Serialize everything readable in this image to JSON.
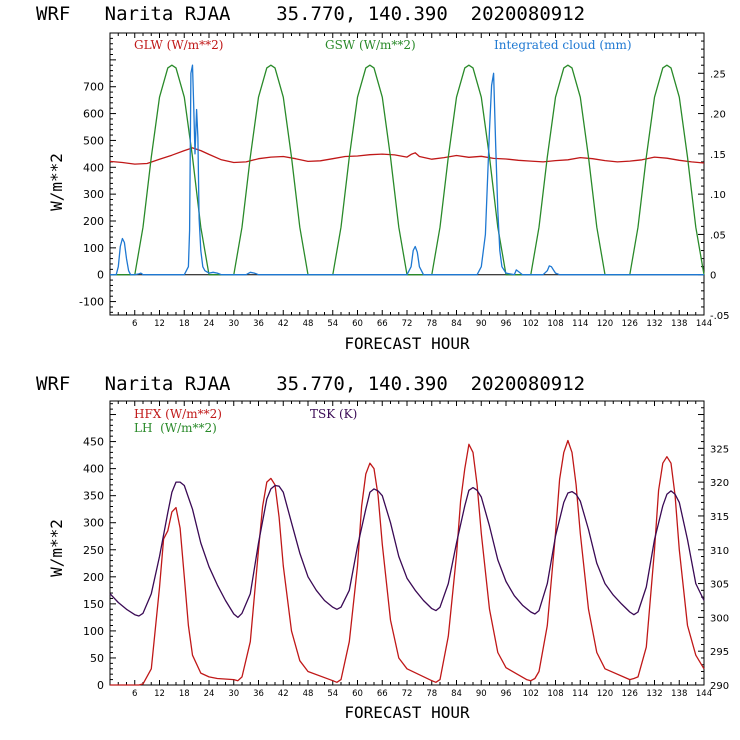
{
  "colors": {
    "red": "#c01818",
    "green": "#2a8a2a",
    "blue": "#1e78d2",
    "purple": "#3a0a55",
    "axis": "#000000"
  },
  "chart_data": [
    {
      "type": "line",
      "title": "WRF   Narita RJAA    35.770, 140.390  2020080912",
      "xlabel": "FORECAST HOUR",
      "ylabel": "W/m**2",
      "xlim": [
        0,
        144
      ],
      "ylim": [
        -150,
        900
      ],
      "y_ticks": [
        -100,
        0,
        100,
        200,
        300,
        400,
        500,
        600,
        700
      ],
      "x_ticks": [
        6,
        12,
        18,
        24,
        30,
        36,
        42,
        48,
        54,
        60,
        66,
        72,
        78,
        84,
        90,
        96,
        102,
        108,
        114,
        120,
        126,
        132,
        138,
        144
      ],
      "y2lim": [
        -0.05,
        0.3
      ],
      "y2_ticks": [
        -0.05,
        0,
        0.05,
        0.1,
        0.15,
        0.2,
        0.25
      ],
      "y2_tick_labels": [
        "-.05",
        "0",
        ".05",
        ".10",
        ".15",
        ".20",
        ".25"
      ],
      "series": [
        {
          "name": "GLW (W/m**2)",
          "color_key": "red",
          "x": [
            0,
            3,
            6,
            9,
            12,
            15,
            18,
            20,
            22,
            24,
            27,
            30,
            33,
            36,
            39,
            42,
            45,
            48,
            51,
            54,
            57,
            60,
            63,
            66,
            69,
            72,
            73,
            74,
            75,
            78,
            81,
            84,
            87,
            90,
            93,
            96,
            99,
            102,
            105,
            108,
            111,
            114,
            117,
            120,
            123,
            126,
            129,
            132,
            135,
            138,
            141,
            144
          ],
          "values": [
            422,
            418,
            412,
            414,
            430,
            445,
            462,
            472,
            462,
            448,
            428,
            418,
            420,
            432,
            438,
            440,
            432,
            422,
            424,
            432,
            440,
            442,
            447,
            449,
            446,
            438,
            448,
            454,
            440,
            430,
            436,
            444,
            437,
            441,
            433,
            431,
            426,
            423,
            420,
            425,
            428,
            436,
            432,
            425,
            420,
            423,
            428,
            438,
            434,
            426,
            420,
            416
          ]
        },
        {
          "name": "GSW (W/m**2)",
          "color_key": "green",
          "x": [
            0,
            6,
            8,
            10,
            12,
            14,
            15,
            16,
            18,
            20,
            22,
            24,
            30,
            32,
            34,
            36,
            38,
            39,
            40,
            42,
            44,
            46,
            48,
            54,
            56,
            58,
            60,
            62,
            63,
            64,
            66,
            68,
            70,
            72,
            78,
            80,
            82,
            84,
            86,
            87,
            88,
            90,
            92,
            94,
            96,
            102,
            104,
            106,
            108,
            110,
            111,
            112,
            114,
            116,
            118,
            120,
            126,
            128,
            130,
            132,
            134,
            135,
            136,
            138,
            140,
            142,
            144
          ],
          "values": [
            0,
            0,
            177,
            438,
            661,
            770,
            780,
            770,
            661,
            438,
            177,
            0,
            0,
            177,
            438,
            661,
            770,
            780,
            770,
            661,
            438,
            177,
            0,
            0,
            177,
            438,
            661,
            770,
            780,
            770,
            661,
            438,
            177,
            0,
            0,
            177,
            438,
            661,
            770,
            780,
            770,
            661,
            438,
            177,
            0,
            0,
            177,
            438,
            661,
            770,
            780,
            770,
            661,
            438,
            177,
            0,
            0,
            177,
            438,
            661,
            770,
            780,
            770,
            661,
            438,
            177,
            0
          ]
        },
        {
          "name": "Integrated cloud (mm)",
          "color_key": "blue",
          "axis": "right",
          "x": [
            0,
            1.5,
            2,
            2.5,
            3,
            3.5,
            4,
            4.5,
            5,
            6,
            7,
            7.5,
            8,
            9,
            18,
            19,
            19.3,
            19.6,
            20,
            20.3,
            20.6,
            21,
            21.3,
            21.6,
            22,
            22.5,
            23,
            24,
            25,
            26,
            27,
            33,
            34,
            35,
            36,
            72,
            73,
            73.5,
            74,
            74.5,
            75,
            76,
            89,
            90,
            91,
            92,
            92.5,
            93,
            93.5,
            94,
            94.5,
            95,
            96,
            98,
            98.5,
            99,
            100,
            105,
            106,
            106.5,
            107,
            107.5,
            108,
            109,
            144
          ],
          "values": [
            0,
            0,
            0.01,
            0.035,
            0.045,
            0.04,
            0.02,
            0.005,
            0,
            0,
            0.001,
            0.002,
            0,
            0,
            0,
            0.01,
            0.055,
            0.25,
            0.26,
            0.21,
            0.15,
            0.205,
            0.17,
            0.07,
            0.03,
            0.01,
            0.005,
            0.002,
            0.003,
            0.002,
            0,
            0,
            0.003,
            0.002,
            0,
            0,
            0.01,
            0.03,
            0.035,
            0.028,
            0.01,
            0,
            0,
            0.01,
            0.05,
            0.18,
            0.235,
            0.25,
            0.16,
            0.08,
            0.03,
            0.01,
            0.002,
            0,
            0.006,
            0.004,
            0,
            0,
            0.005,
            0.011,
            0.01,
            0.006,
            0.002,
            0,
            0
          ]
        }
      ]
    },
    {
      "type": "line",
      "title": "WRF   Narita RJAA    35.770, 140.390  2020080912",
      "xlabel": "FORECAST HOUR",
      "ylabel": "W/m**2",
      "xlim": [
        0,
        144
      ],
      "ylim": [
        0,
        525
      ],
      "y_ticks": [
        0,
        50,
        100,
        150,
        200,
        250,
        300,
        350,
        400,
        450
      ],
      "x_ticks": [
        6,
        12,
        18,
        24,
        30,
        36,
        42,
        48,
        54,
        60,
        66,
        72,
        78,
        84,
        90,
        96,
        102,
        108,
        114,
        120,
        126,
        132,
        138,
        144
      ],
      "y2lim": [
        290,
        332
      ],
      "y2_ticks": [
        290,
        295,
        300,
        305,
        310,
        315,
        320,
        325
      ],
      "y2_tick_labels": [
        "290",
        "295",
        "300",
        "305",
        "310",
        "315",
        "320",
        "325"
      ],
      "series": [
        {
          "name": "HFX (W/m**2)",
          "color_key": "red",
          "x": [
            0,
            1,
            3,
            5,
            6,
            7,
            8,
            10,
            12,
            13,
            14,
            15,
            16,
            17,
            18,
            19,
            20,
            22,
            24,
            26,
            30,
            31,
            32,
            34,
            36,
            37,
            38,
            39,
            40,
            41,
            42,
            44,
            46,
            48,
            54,
            55,
            56,
            58,
            60,
            61,
            62,
            63,
            64,
            65,
            66,
            68,
            70,
            72,
            78,
            79,
            80,
            82,
            84,
            85,
            86,
            87,
            88,
            89,
            90,
            92,
            94,
            96,
            101,
            102,
            103,
            104,
            106,
            108,
            109,
            110,
            111,
            112,
            113,
            114,
            116,
            118,
            120,
            126,
            127,
            128,
            130,
            132,
            133,
            134,
            135,
            136,
            137,
            138,
            140,
            142,
            144
          ],
          "values": [
            0,
            0,
            0,
            0,
            0,
            0,
            2,
            30,
            180,
            270,
            285,
            320,
            328,
            290,
            200,
            110,
            55,
            22,
            15,
            12,
            10,
            8,
            15,
            80,
            250,
            330,
            375,
            382,
            370,
            310,
            220,
            100,
            45,
            25,
            8,
            5,
            10,
            80,
            220,
            330,
            390,
            410,
            400,
            350,
            260,
            120,
            50,
            30,
            8,
            5,
            10,
            90,
            240,
            340,
            400,
            445,
            430,
            370,
            280,
            140,
            60,
            32,
            10,
            8,
            12,
            25,
            110,
            280,
            380,
            430,
            452,
            430,
            370,
            280,
            140,
            60,
            30,
            10,
            12,
            15,
            70,
            250,
            360,
            410,
            422,
            410,
            350,
            250,
            110,
            55,
            30
          ]
        },
        {
          "name": "LH  (W/m**2)",
          "color_key": "green",
          "x": [],
          "values": []
        },
        {
          "name": "TSK (K)",
          "color_key": "purple",
          "axis": "right",
          "x": [
            0,
            2,
            4,
            6,
            7,
            8,
            10,
            12,
            14,
            15,
            16,
            17,
            18,
            20,
            22,
            24,
            26,
            28,
            30,
            31,
            32,
            34,
            36,
            38,
            39,
            40,
            41,
            42,
            44,
            46,
            48,
            50,
            52,
            54,
            55,
            56,
            58,
            60,
            62,
            63,
            64,
            65,
            66,
            68,
            70,
            72,
            74,
            76,
            78,
            79,
            80,
            82,
            84,
            86,
            87,
            88,
            89,
            90,
            92,
            94,
            96,
            98,
            100,
            102,
            103,
            104,
            106,
            108,
            110,
            111,
            112,
            113,
            114,
            116,
            118,
            120,
            122,
            124,
            126,
            127,
            128,
            130,
            132,
            134,
            135,
            136,
            137,
            138,
            140,
            142,
            144
          ],
          "values": [
            303.5,
            302.2,
            301.2,
            300.4,
            300.2,
            300.6,
            303.5,
            309,
            315.5,
            318.5,
            320,
            320,
            319.5,
            316,
            311,
            307.5,
            304.8,
            302.5,
            300.5,
            300,
            300.6,
            303.5,
            311,
            317.5,
            319,
            319.5,
            319.4,
            318.5,
            314,
            309.5,
            306,
            304,
            302.5,
            301.5,
            301.2,
            301.5,
            304,
            310.5,
            316,
            318.5,
            319,
            318.7,
            318,
            314,
            309,
            305.8,
            304,
            302.5,
            301.3,
            301,
            301.5,
            305,
            311,
            316.5,
            318.8,
            319.2,
            318.8,
            317.8,
            313.5,
            308.5,
            305.3,
            303.2,
            301.8,
            300.8,
            300.5,
            301,
            305,
            312,
            317,
            318.4,
            318.6,
            318.2,
            317.2,
            313,
            308,
            305,
            303.3,
            302,
            300.8,
            300.4,
            300.8,
            304.5,
            311.5,
            316.5,
            318.2,
            318.7,
            318.2,
            317,
            311.5,
            305,
            302.5
          ]
        }
      ]
    }
  ]
}
